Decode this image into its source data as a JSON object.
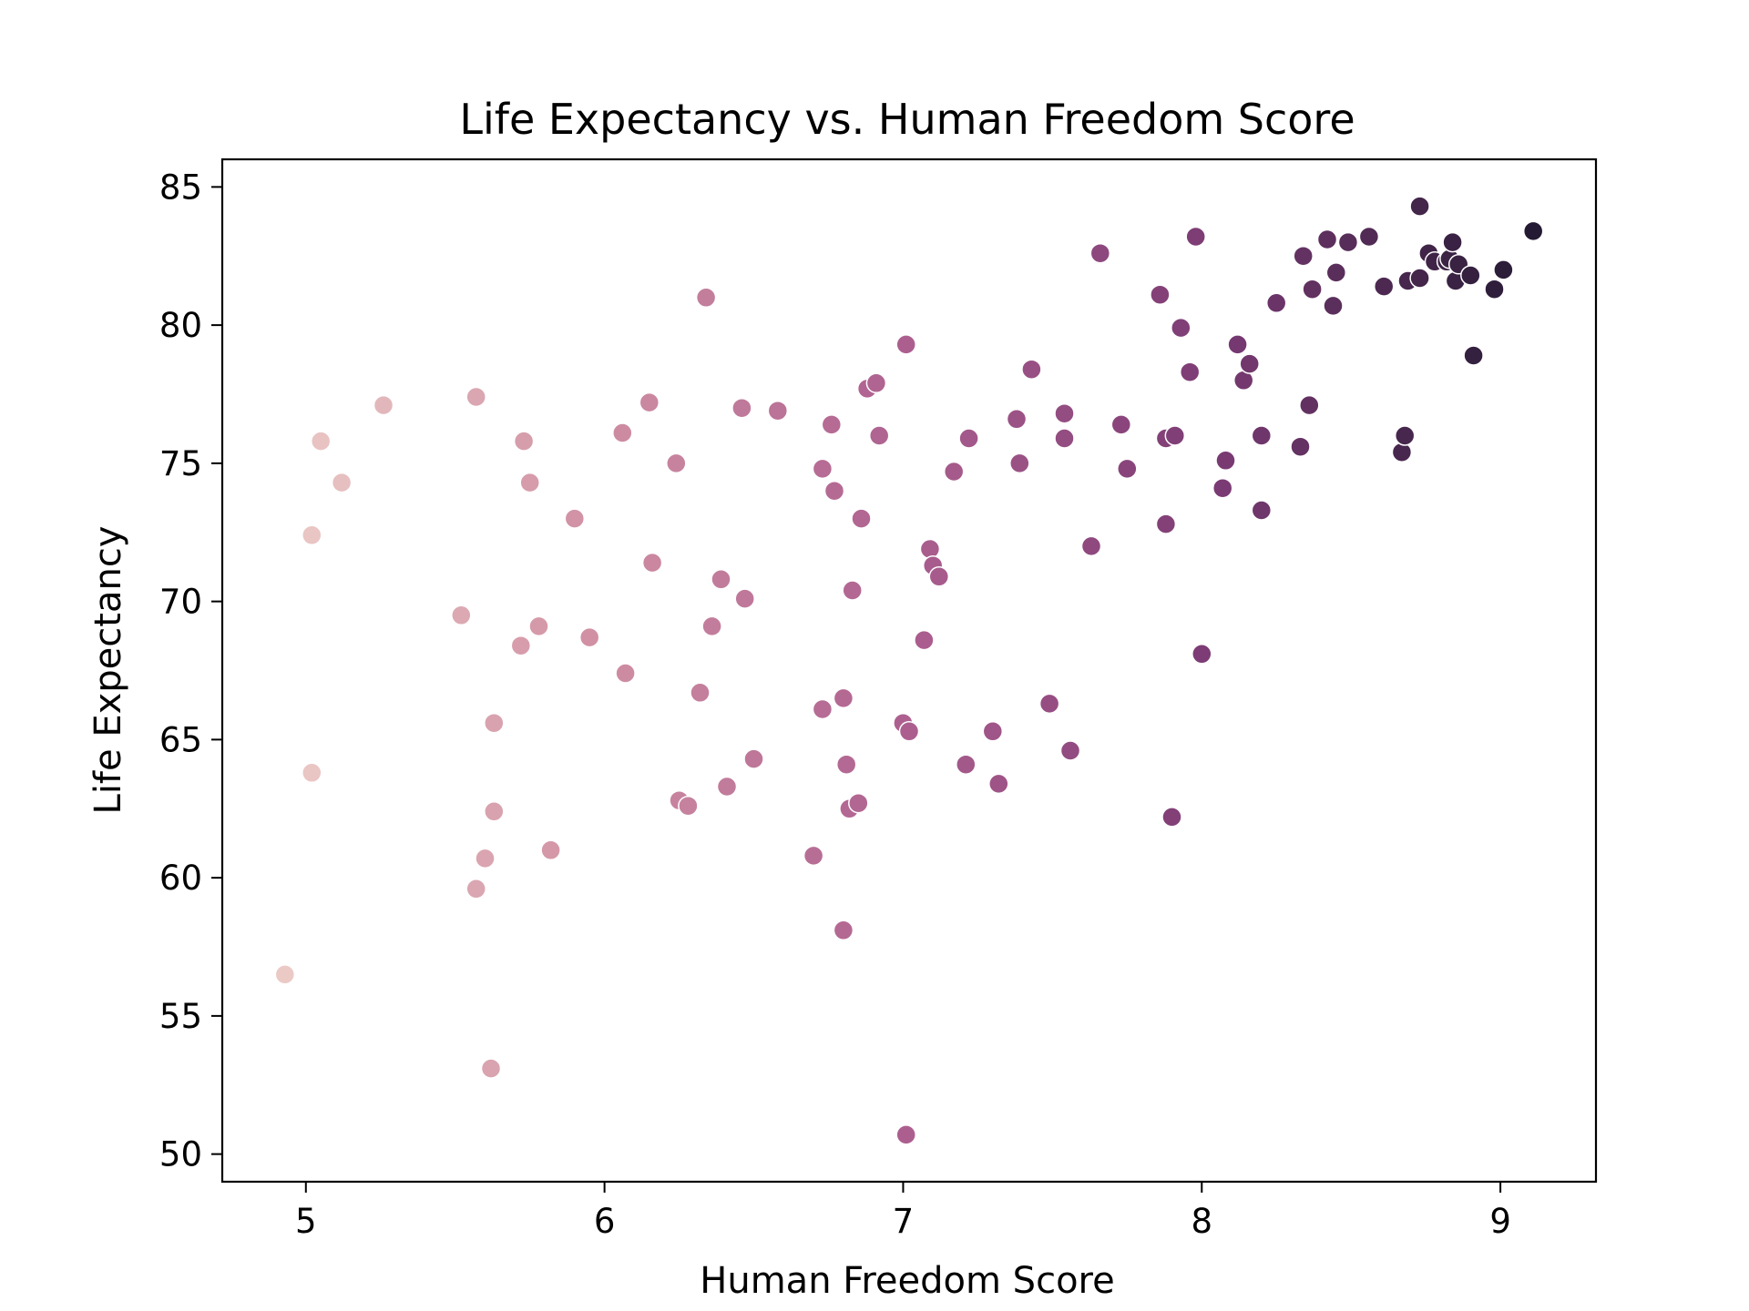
{
  "chart_data": {
    "type": "scatter",
    "title": "Life Expectancy vs. Human Freedom Score",
    "xlabel": "Human Freedom Score",
    "ylabel": "Life Expectancy",
    "xlim": [
      4.72,
      9.32
    ],
    "ylim": [
      49.0,
      86.0
    ],
    "xticks": [
      5,
      6,
      7,
      8,
      9
    ],
    "yticks": [
      50,
      55,
      60,
      65,
      70,
      75,
      80,
      85
    ],
    "grid": false,
    "legend": "none",
    "hue": "x",
    "hue_range": [
      4.93,
      9.11
    ],
    "colors": {
      "hue_low": "#ebcac6",
      "hue_mid_low": "#d08fa3",
      "hue_mid": "#ac5f8f",
      "hue_mid_high": "#7a3a73",
      "hue_high": "#241a33",
      "marker_edge": "#ffffff"
    },
    "points": [
      [
        4.93,
        56.5
      ],
      [
        5.02,
        72.4
      ],
      [
        5.02,
        63.8
      ],
      [
        5.05,
        75.8
      ],
      [
        5.12,
        74.3
      ],
      [
        5.26,
        77.1
      ],
      [
        5.52,
        69.5
      ],
      [
        5.57,
        77.4
      ],
      [
        5.57,
        59.6
      ],
      [
        5.6,
        60.7
      ],
      [
        5.62,
        53.1
      ],
      [
        5.63,
        65.6
      ],
      [
        5.63,
        62.4
      ],
      [
        5.72,
        68.4
      ],
      [
        5.73,
        75.8
      ],
      [
        5.75,
        74.3
      ],
      [
        5.78,
        69.1
      ],
      [
        5.82,
        61.0
      ],
      [
        5.9,
        73.0
      ],
      [
        5.95,
        68.7
      ],
      [
        6.06,
        76.1
      ],
      [
        6.07,
        67.4
      ],
      [
        6.15,
        77.2
      ],
      [
        6.16,
        71.4
      ],
      [
        6.24,
        75.0
      ],
      [
        6.25,
        62.8
      ],
      [
        6.28,
        62.6
      ],
      [
        6.32,
        66.7
      ],
      [
        6.34,
        81.0
      ],
      [
        6.36,
        69.1
      ],
      [
        6.39,
        70.8
      ],
      [
        6.41,
        63.3
      ],
      [
        6.46,
        77.0
      ],
      [
        6.47,
        70.1
      ],
      [
        6.5,
        64.3
      ],
      [
        6.58,
        76.9
      ],
      [
        6.7,
        60.8
      ],
      [
        6.73,
        74.8
      ],
      [
        6.73,
        66.1
      ],
      [
        6.76,
        76.4
      ],
      [
        6.77,
        74.0
      ],
      [
        6.8,
        66.5
      ],
      [
        6.8,
        58.1
      ],
      [
        6.81,
        64.1
      ],
      [
        6.82,
        62.5
      ],
      [
        6.83,
        70.4
      ],
      [
        6.85,
        62.7
      ],
      [
        6.86,
        73.0
      ],
      [
        6.88,
        77.7
      ],
      [
        6.91,
        77.9
      ],
      [
        6.92,
        76.0
      ],
      [
        7.0,
        65.6
      ],
      [
        7.01,
        79.3
      ],
      [
        7.01,
        50.7
      ],
      [
        7.02,
        65.3
      ],
      [
        7.07,
        68.6
      ],
      [
        7.09,
        71.9
      ],
      [
        7.1,
        71.3
      ],
      [
        7.12,
        70.9
      ],
      [
        7.17,
        74.7
      ],
      [
        7.21,
        64.1
      ],
      [
        7.22,
        75.9
      ],
      [
        7.3,
        65.3
      ],
      [
        7.32,
        63.4
      ],
      [
        7.38,
        76.6
      ],
      [
        7.39,
        75.0
      ],
      [
        7.43,
        78.4
      ],
      [
        7.49,
        66.3
      ],
      [
        7.54,
        76.8
      ],
      [
        7.54,
        75.9
      ],
      [
        7.56,
        64.6
      ],
      [
        7.63,
        72.0
      ],
      [
        7.66,
        82.6
      ],
      [
        7.73,
        76.4
      ],
      [
        7.75,
        74.8
      ],
      [
        7.86,
        81.1
      ],
      [
        7.88,
        75.9
      ],
      [
        7.88,
        72.8
      ],
      [
        7.9,
        62.2
      ],
      [
        7.91,
        76.0
      ],
      [
        7.93,
        79.9
      ],
      [
        7.96,
        78.3
      ],
      [
        7.98,
        83.2
      ],
      [
        8.0,
        68.1
      ],
      [
        8.07,
        74.1
      ],
      [
        8.08,
        75.1
      ],
      [
        8.12,
        79.3
      ],
      [
        8.14,
        78.0
      ],
      [
        8.16,
        78.6
      ],
      [
        8.2,
        76.0
      ],
      [
        8.2,
        73.3
      ],
      [
        8.25,
        80.8
      ],
      [
        8.33,
        75.6
      ],
      [
        8.34,
        82.5
      ],
      [
        8.36,
        77.1
      ],
      [
        8.37,
        81.3
      ],
      [
        8.42,
        83.1
      ],
      [
        8.44,
        80.7
      ],
      [
        8.45,
        81.9
      ],
      [
        8.49,
        83.0
      ],
      [
        8.56,
        83.2
      ],
      [
        8.61,
        81.4
      ],
      [
        8.67,
        75.4
      ],
      [
        8.68,
        76.0
      ],
      [
        8.69,
        81.6
      ],
      [
        8.73,
        81.7
      ],
      [
        8.73,
        84.3
      ],
      [
        8.76,
        82.6
      ],
      [
        8.78,
        82.3
      ],
      [
        8.82,
        82.3
      ],
      [
        8.83,
        82.4
      ],
      [
        8.84,
        83.0
      ],
      [
        8.85,
        81.6
      ],
      [
        8.86,
        82.2
      ],
      [
        8.9,
        81.8
      ],
      [
        8.91,
        78.9
      ],
      [
        8.98,
        81.3
      ],
      [
        9.01,
        82.0
      ],
      [
        9.11,
        83.4
      ]
    ]
  }
}
